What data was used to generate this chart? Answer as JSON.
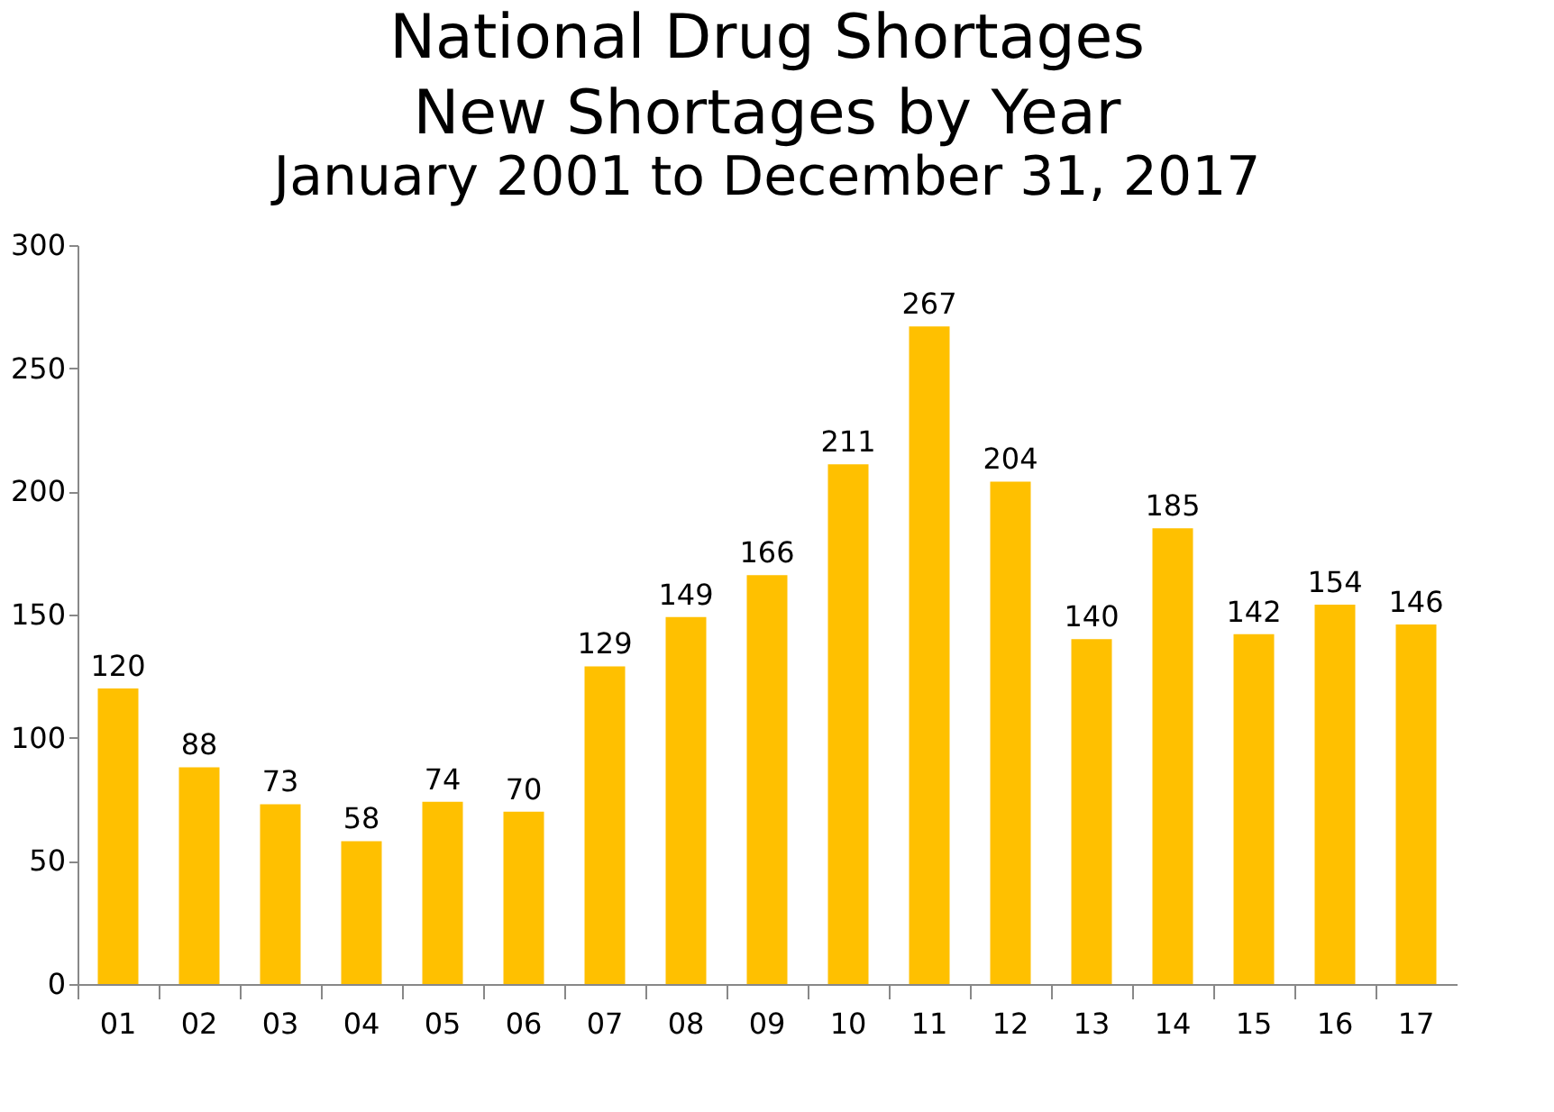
{
  "chart_data": {
    "type": "bar",
    "title": "National Drug Shortages\nNew Shortages by Year",
    "subtitle": "January 2001 to December 31, 2017",
    "categories": [
      "01",
      "02",
      "03",
      "04",
      "05",
      "06",
      "07",
      "08",
      "09",
      "10",
      "11",
      "12",
      "13",
      "14",
      "15",
      "16",
      "17"
    ],
    "values": [
      120,
      88,
      73,
      58,
      74,
      70,
      129,
      149,
      166,
      211,
      267,
      204,
      140,
      185,
      142,
      154,
      146
    ],
    "color": "#ffc000",
    "ylim": [
      0,
      300
    ],
    "yticks": [
      0,
      50,
      100,
      150,
      200,
      250,
      300
    ],
    "data_labels": true
  }
}
